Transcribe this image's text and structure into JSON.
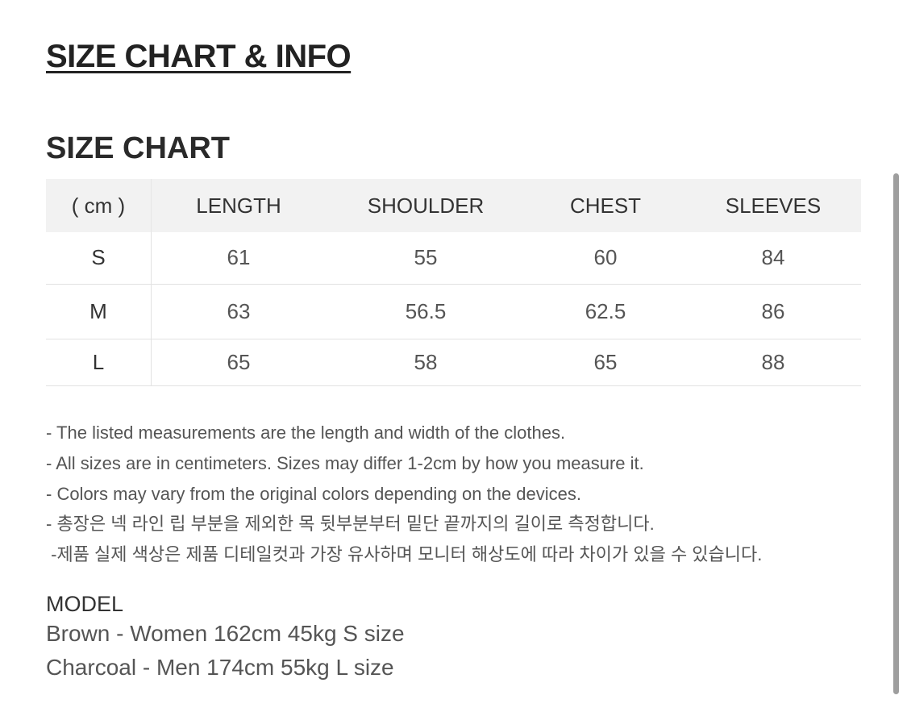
{
  "title": "SIZE CHART & INFO",
  "subtitle": "SIZE CHART",
  "table": {
    "headers": [
      "( cm )",
      "LENGTH",
      "SHOULDER",
      "CHEST",
      "SLEEVES"
    ],
    "rows": [
      [
        "S",
        "61",
        "55",
        "60",
        "84"
      ],
      [
        "M",
        "63",
        "56.5",
        "62.5",
        "86"
      ],
      [
        "L",
        "65",
        "58",
        "65",
        "88"
      ]
    ]
  },
  "notes": [
    "- The listed measurements are the length and width of the clothes.",
    "- All sizes are in centimeters. Sizes may differ 1-2cm by how you measure it.",
    "- Colors may vary from the original colors depending on the devices.",
    "- 총장은 넥 라인 립 부분을 제외한 목 뒷부분부터 밑단 끝까지의 길이로 측정합니다.",
    " -제품 실제 색상은 제품 디테일컷과 가장 유사하며 모니터 해상도에 따라 차이가 있을 수 있습니다."
  ],
  "model": {
    "heading": "MODEL",
    "lines": [
      "Brown - Women 162cm 45kg S size",
      "Charcoal - Men 174cm 55kg L size"
    ]
  }
}
